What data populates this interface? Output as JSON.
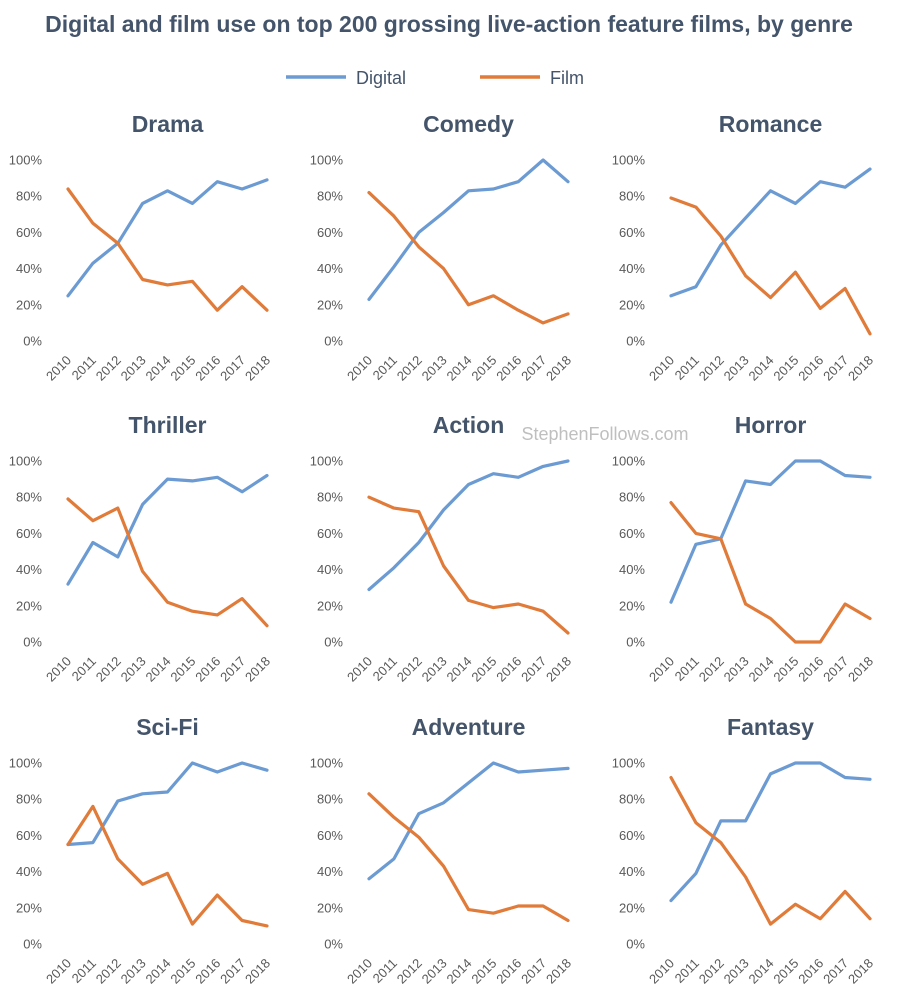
{
  "title": "Digital and film use on top 200 grossing live-action feature films, by genre",
  "watermark": "StephenFollows.com",
  "colors": {
    "digital": "#6b9bd2",
    "film": "#e07b39"
  },
  "legend": [
    {
      "name": "Digital",
      "color": "#6b9bd2"
    },
    {
      "name": "Film",
      "color": "#e07b39"
    }
  ],
  "chart_data": [
    {
      "type": "line",
      "title": "Drama",
      "x": [
        "2010",
        "2011",
        "2012",
        "2013",
        "2014",
        "2015",
        "2016",
        "2017",
        "2018"
      ],
      "ylim": [
        0,
        100
      ],
      "yticks": [
        "0%",
        "20%",
        "40%",
        "60%",
        "80%",
        "100%"
      ],
      "series": [
        {
          "name": "Digital",
          "values": [
            25,
            43,
            54,
            76,
            83,
            76,
            88,
            84,
            89
          ]
        },
        {
          "name": "Film",
          "values": [
            84,
            65,
            54,
            34,
            31,
            33,
            17,
            30,
            17
          ]
        }
      ]
    },
    {
      "type": "line",
      "title": "Comedy",
      "x": [
        "2010",
        "2011",
        "2012",
        "2013",
        "2014",
        "2015",
        "2016",
        "2017",
        "2018"
      ],
      "ylim": [
        0,
        100
      ],
      "yticks": [
        "0%",
        "20%",
        "40%",
        "60%",
        "80%",
        "100%"
      ],
      "series": [
        {
          "name": "Digital",
          "values": [
            23,
            41,
            60,
            71,
            83,
            84,
            88,
            100,
            88
          ]
        },
        {
          "name": "Film",
          "values": [
            82,
            69,
            52,
            40,
            20,
            25,
            17,
            10,
            15
          ]
        }
      ]
    },
    {
      "type": "line",
      "title": "Romance",
      "x": [
        "2010",
        "2011",
        "2012",
        "2013",
        "2014",
        "2015",
        "2016",
        "2017",
        "2018"
      ],
      "ylim": [
        0,
        100
      ],
      "yticks": [
        "0%",
        "20%",
        "40%",
        "60%",
        "80%",
        "100%"
      ],
      "series": [
        {
          "name": "Digital",
          "values": [
            25,
            30,
            53,
            68,
            83,
            76,
            88,
            85,
            95
          ]
        },
        {
          "name": "Film",
          "values": [
            79,
            74,
            58,
            36,
            24,
            38,
            18,
            29,
            4
          ]
        }
      ]
    },
    {
      "type": "line",
      "title": "Thriller",
      "x": [
        "2010",
        "2011",
        "2012",
        "2013",
        "2014",
        "2015",
        "2016",
        "2017",
        "2018"
      ],
      "ylim": [
        0,
        100
      ],
      "yticks": [
        "0%",
        "20%",
        "40%",
        "60%",
        "80%",
        "100%"
      ],
      "series": [
        {
          "name": "Digital",
          "values": [
            32,
            55,
            47,
            76,
            90,
            89,
            91,
            83,
            92
          ]
        },
        {
          "name": "Film",
          "values": [
            79,
            67,
            74,
            39,
            22,
            17,
            15,
            24,
            9
          ]
        }
      ]
    },
    {
      "type": "line",
      "title": "Action",
      "x": [
        "2010",
        "2011",
        "2012",
        "2013",
        "2014",
        "2015",
        "2016",
        "2017",
        "2018"
      ],
      "ylim": [
        0,
        100
      ],
      "yticks": [
        "0%",
        "20%",
        "40%",
        "60%",
        "80%",
        "100%"
      ],
      "series": [
        {
          "name": "Digital",
          "values": [
            29,
            41,
            55,
            73,
            87,
            93,
            91,
            97,
            100
          ]
        },
        {
          "name": "Film",
          "values": [
            80,
            74,
            72,
            42,
            23,
            19,
            21,
            17,
            5
          ]
        }
      ]
    },
    {
      "type": "line",
      "title": "Horror",
      "x": [
        "2010",
        "2011",
        "2012",
        "2013",
        "2014",
        "2015",
        "2016",
        "2017",
        "2018"
      ],
      "ylim": [
        0,
        100
      ],
      "yticks": [
        "0%",
        "20%",
        "40%",
        "60%",
        "80%",
        "100%"
      ],
      "series": [
        {
          "name": "Digital",
          "values": [
            22,
            54,
            57,
            89,
            87,
            100,
            100,
            92,
            91
          ]
        },
        {
          "name": "Film",
          "values": [
            77,
            60,
            57,
            21,
            13,
            0,
            0,
            21,
            13
          ]
        }
      ]
    },
    {
      "type": "line",
      "title": "Sci-Fi",
      "x": [
        "2010",
        "2011",
        "2012",
        "2013",
        "2014",
        "2015",
        "2016",
        "2017",
        "2018"
      ],
      "ylim": [
        0,
        100
      ],
      "yticks": [
        "0%",
        "20%",
        "40%",
        "60%",
        "80%",
        "100%"
      ],
      "series": [
        {
          "name": "Digital",
          "values": [
            55,
            56,
            79,
            83,
            84,
            100,
            95,
            100,
            96
          ]
        },
        {
          "name": "Film",
          "values": [
            55,
            76,
            47,
            33,
            39,
            11,
            27,
            13,
            10
          ]
        }
      ]
    },
    {
      "type": "line",
      "title": "Adventure",
      "x": [
        "2010",
        "2011",
        "2012",
        "2013",
        "2014",
        "2015",
        "2016",
        "2017",
        "2018"
      ],
      "ylim": [
        0,
        100
      ],
      "yticks": [
        "0%",
        "20%",
        "40%",
        "60%",
        "80%",
        "100%"
      ],
      "series": [
        {
          "name": "Digital",
          "values": [
            36,
            47,
            72,
            78,
            89,
            100,
            95,
            96,
            97
          ]
        },
        {
          "name": "Film",
          "values": [
            83,
            70,
            59,
            43,
            19,
            17,
            21,
            21,
            13
          ]
        }
      ]
    },
    {
      "type": "line",
      "title": "Fantasy",
      "x": [
        "2010",
        "2011",
        "2012",
        "2013",
        "2014",
        "2015",
        "2016",
        "2017",
        "2018"
      ],
      "ylim": [
        0,
        100
      ],
      "yticks": [
        "0%",
        "20%",
        "40%",
        "60%",
        "80%",
        "100%"
      ],
      "series": [
        {
          "name": "Digital",
          "values": [
            24,
            39,
            68,
            68,
            94,
            100,
            100,
            92,
            91
          ]
        },
        {
          "name": "Film",
          "values": [
            92,
            67,
            56,
            37,
            11,
            22,
            14,
            29,
            14
          ]
        }
      ]
    }
  ]
}
